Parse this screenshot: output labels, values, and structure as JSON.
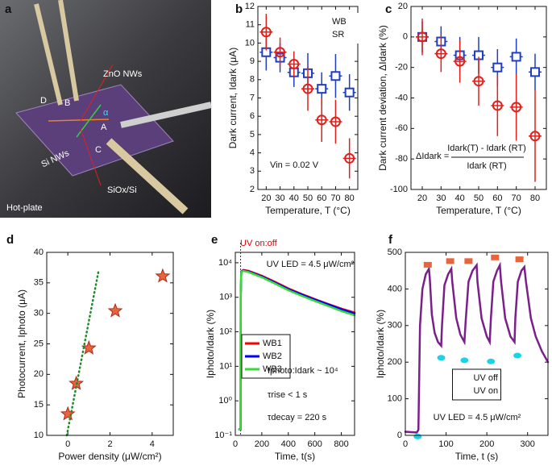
{
  "photo": {
    "labels": [
      "a",
      "ZnO NWs",
      "D",
      "B",
      "α",
      "A",
      "Si NWs",
      "C",
      "SiOx/Si",
      "Hot-plate"
    ]
  },
  "chart_data": [
    {
      "type": "scatter",
      "panel_label": "b",
      "xlabel": "Temperature, T (°C)",
      "ylabel": "Dark current, Idark (μA)",
      "x": [
        20,
        30,
        40,
        50,
        60,
        70,
        80
      ],
      "xlim": [
        14,
        86
      ],
      "xticks": [
        20,
        30,
        40,
        50,
        60,
        70,
        80
      ],
      "ylim": [
        2,
        12
      ],
      "yticks": [
        2,
        3,
        4,
        5,
        6,
        7,
        8,
        9,
        10,
        11,
        12
      ],
      "legend": "upper right",
      "series": [
        {
          "name": "WB",
          "color": "#1f3fbf",
          "marker": "square",
          "values": [
            9.5,
            9.2,
            8.4,
            8.35,
            7.5,
            8.2,
            7.3
          ],
          "errors": [
            1.0,
            0.8,
            0.8,
            1.1,
            0.9,
            1.2,
            1.0
          ]
        },
        {
          "name": "SR",
          "color": "#e0201b",
          "marker": "circle",
          "values": [
            10.6,
            9.5,
            8.85,
            7.5,
            5.8,
            5.7,
            3.7
          ],
          "errors": [
            1.0,
            0.8,
            0.7,
            1.2,
            1.2,
            1.2,
            1.1
          ]
        }
      ],
      "annotations": [
        {
          "text": "Vin = 0.02 V"
        }
      ]
    },
    {
      "type": "scatter",
      "panel_label": "c",
      "xlabel": "Temperature, T (°C)",
      "ylabel": "Dark current deviation, ΔIdark (%)",
      "x": [
        20,
        30,
        40,
        50,
        60,
        70,
        80
      ],
      "xlim": [
        14,
        86
      ],
      "xticks": [
        20,
        30,
        40,
        50,
        60,
        70,
        80
      ],
      "ylim": [
        -100,
        20
      ],
      "yticks": [
        -100,
        -80,
        -60,
        -40,
        -20,
        0,
        20
      ],
      "series": [
        {
          "color": "#1f3fbf",
          "marker": "square",
          "values": [
            0,
            -3,
            -12,
            -12,
            -20,
            -13,
            -23
          ],
          "errors": [
            10,
            10,
            12,
            12,
            12,
            12,
            12
          ]
        },
        {
          "color": "#e0201b",
          "marker": "circle",
          "values": [
            0,
            -11,
            -16,
            -29,
            -45,
            -46,
            -65
          ],
          "errors": [
            12,
            12,
            14,
            16,
            20,
            22,
            30
          ]
        }
      ],
      "annotations": [
        {
          "text": "ΔIdark ="
        },
        {
          "text": "Idark(T) - Idark (RT)"
        },
        {
          "text": "Idark (RT)"
        }
      ]
    },
    {
      "type": "scatter",
      "panel_label": "d",
      "xlabel": "Power density (μW/cm²)",
      "ylabel": "Photocurrent, Iphoto (μA)",
      "xlim": [
        -1,
        5
      ],
      "xticks": [
        0,
        2,
        4
      ],
      "ylim": [
        10,
        40
      ],
      "yticks": [
        10,
        15,
        20,
        25,
        30,
        35,
        40
      ],
      "series": [
        {
          "color": "#e8643c",
          "marker": "star",
          "x": [
            0,
            0.4,
            1,
            2.25,
            4.5
          ],
          "values": [
            13.5,
            18.5,
            24.3,
            30.4,
            36.1
          ]
        },
        {
          "color": "#1f8a2a",
          "line": "dotted",
          "x": [
            -0.05,
            1.45
          ],
          "values": [
            10,
            36.8
          ]
        }
      ]
    },
    {
      "type": "line",
      "panel_label": "e",
      "xlabel": "Time, t(s)",
      "ylabel": "Iphoto/Idark (%)",
      "xlim": [
        0,
        900
      ],
      "xticks": [
        0,
        200,
        400,
        600,
        800
      ],
      "ylim": [
        0.1,
        20000
      ],
      "ylog": true,
      "yticks": [
        {
          "value": 0.1,
          "label": "10⁻¹"
        },
        {
          "value": 1,
          "label": "10⁰"
        },
        {
          "value": 10,
          "label": "10¹"
        },
        {
          "value": 100,
          "label": "10²"
        },
        {
          "value": 1000,
          "label": "10³"
        },
        {
          "value": 10000,
          "label": "10⁴"
        }
      ],
      "vlines": [
        40
      ],
      "legend": "center left",
      "x": [
        30,
        38,
        40,
        41,
        45,
        60,
        100,
        200,
        300,
        400,
        500,
        600,
        700,
        800,
        900
      ],
      "series": [
        {
          "name": "WB1",
          "color": "#ff0000",
          "line": "solid",
          "values": [
            0.15,
            0.15,
            0.15,
            1000,
            5600,
            6200,
            5800,
            4200,
            2800,
            1800,
            1250,
            880,
            640,
            470,
            360
          ]
        },
        {
          "name": "WB2",
          "color": "#0000ff",
          "line": "solid",
          "values": [
            0.15,
            0.15,
            0.15,
            1000,
            5500,
            6000,
            5600,
            4000,
            2650,
            1700,
            1200,
            850,
            620,
            450,
            340
          ]
        },
        {
          "name": "WB3",
          "color": "#33dd33",
          "line": "solid",
          "values": [
            0.15,
            0.15,
            0.15,
            1000,
            5400,
            5800,
            5400,
            3800,
            2500,
            1600,
            1100,
            780,
            560,
            400,
            300
          ]
        }
      ],
      "annotations": [
        {
          "text": "UV on:off",
          "color": "#e00000"
        },
        {
          "text": "UV LED = 4.5 μW/cm²"
        },
        {
          "text": "Iphoto:Idark ~ 10⁴"
        },
        {
          "text": "τrise < 1 s"
        },
        {
          "text": "τdecay = 220 s"
        }
      ]
    },
    {
      "type": "line",
      "panel_label": "f",
      "xlabel": "Time, t (s)",
      "ylabel": "Iphoto/Idark (%)",
      "xlim": [
        0,
        350
      ],
      "xticks": [
        0,
        100,
        200,
        300
      ],
      "ylim": [
        0,
        500
      ],
      "yticks": [
        0,
        100,
        200,
        300,
        400,
        500
      ],
      "legend": "lower center",
      "series": [
        {
          "color": "#7b1f8a",
          "line": "solid",
          "x": [
            0,
            28,
            32,
            36,
            42,
            50,
            58,
            60,
            65,
            72,
            80,
            88,
            90,
            96,
            105,
            113,
            115,
            125,
            135,
            145,
            148,
            155,
            165,
            175,
            177,
            187,
            200,
            207,
            210,
            216,
            225,
            232,
            235,
            245,
            258,
            268,
            270,
            276,
            285,
            292,
            296,
            308,
            320,
            335,
            350
          ],
          "values": [
            10,
            8,
            15,
            300,
            400,
            440,
            455,
            430,
            330,
            280,
            255,
            245,
            300,
            410,
            440,
            455,
            420,
            320,
            275,
            255,
            310,
            420,
            450,
            465,
            420,
            320,
            270,
            255,
            320,
            420,
            450,
            465,
            420,
            320,
            270,
            255,
            320,
            420,
            450,
            460,
            420,
            320,
            270,
            230,
            200
          ]
        },
        {
          "name": "UV off",
          "color": "#e8643c",
          "marker": "filled-square",
          "x": [
            55,
            110,
            155,
            220,
            280
          ],
          "values": [
            465,
            475,
            475,
            485,
            480
          ]
        },
        {
          "name": "UV on",
          "color": "#19d3e6",
          "marker": "ellipse",
          "x": [
            30,
            88,
            145,
            210,
            275
          ],
          "values": [
            -3,
            212,
            205,
            202,
            218
          ]
        }
      ],
      "annotations": [
        {
          "text": "UV LED = 4.5 μW/cm²"
        }
      ]
    }
  ]
}
